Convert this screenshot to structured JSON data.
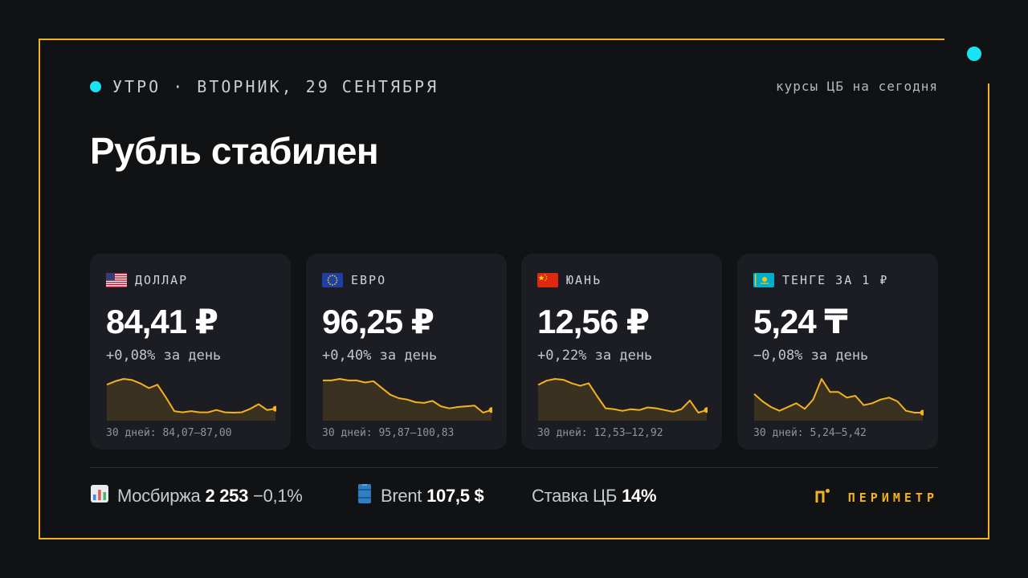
{
  "header": {
    "date_line": "УТРО · ВТОРНИК, 29 СЕНТЯБРЯ",
    "note": "курсы ЦБ на сегодня"
  },
  "headline": "Рубль стабилен",
  "colors": {
    "accent_cyan": "#19e3f3",
    "accent_gold": "#f4b21c",
    "card_bg": "#1c1d22",
    "page_bg": "#111214"
  },
  "cards": [
    {
      "flag": "usa-flag-icon",
      "name": "ДОЛЛАР",
      "value": "84,41 ₽",
      "change": "+0,08% за день",
      "range": "30 дней: 84,07–87,00",
      "series": [
        86.5,
        86.8,
        87.0,
        86.9,
        86.6,
        86.2,
        86.5,
        85.4,
        84.2,
        84.1,
        84.2,
        84.1,
        84.1,
        84.3,
        84.1,
        84.07,
        84.1,
        84.4,
        84.8,
        84.3,
        84.41
      ]
    },
    {
      "flag": "eu-flag-icon",
      "name": "ЕВРО",
      "value": "96,25 ₽",
      "change": "+0,40% за день",
      "range": "30 дней: 95,87–100,83",
      "series": [
        100.6,
        100.6,
        100.83,
        100.6,
        100.6,
        100.3,
        100.5,
        99.5,
        98.5,
        98.0,
        97.8,
        97.4,
        97.3,
        97.6,
        96.8,
        96.5,
        96.7,
        96.8,
        96.9,
        95.87,
        96.25
      ]
    },
    {
      "flag": "china-flag-icon",
      "name": "ЮАНЬ",
      "value": "12,56 ₽",
      "change": "+0,22% за день",
      "range": "30 дней: 12,53–12,92",
      "series": [
        12.85,
        12.9,
        12.92,
        12.91,
        12.87,
        12.84,
        12.87,
        12.72,
        12.58,
        12.57,
        12.55,
        12.57,
        12.56,
        12.59,
        12.58,
        12.56,
        12.54,
        12.57,
        12.67,
        12.53,
        12.56
      ]
    },
    {
      "flag": "kazakhstan-flag-icon",
      "name": "ТЕНГЕ ЗА 1 ₽",
      "value": "5,24 ₸",
      "change": "−0,08% за день",
      "range": "30 дней: 5,24–5,42",
      "series": [
        5.34,
        5.3,
        5.27,
        5.25,
        5.27,
        5.29,
        5.26,
        5.31,
        5.42,
        5.35,
        5.35,
        5.32,
        5.33,
        5.28,
        5.29,
        5.31,
        5.32,
        5.3,
        5.25,
        5.24,
        5.24
      ]
    }
  ],
  "footer": {
    "moex": {
      "icon": "bar-chart-icon",
      "label": "Мосбиржа",
      "value": "2 253",
      "change": "−0,1%"
    },
    "brent": {
      "icon": "oil-barrel-icon",
      "label": "Brent",
      "value": "107,5 $"
    },
    "rate": {
      "label": "Ставка ЦБ",
      "value": "14%"
    },
    "brand": {
      "icon": "perimetr-logo-icon",
      "name": "ПЕРИМЕТР"
    }
  }
}
